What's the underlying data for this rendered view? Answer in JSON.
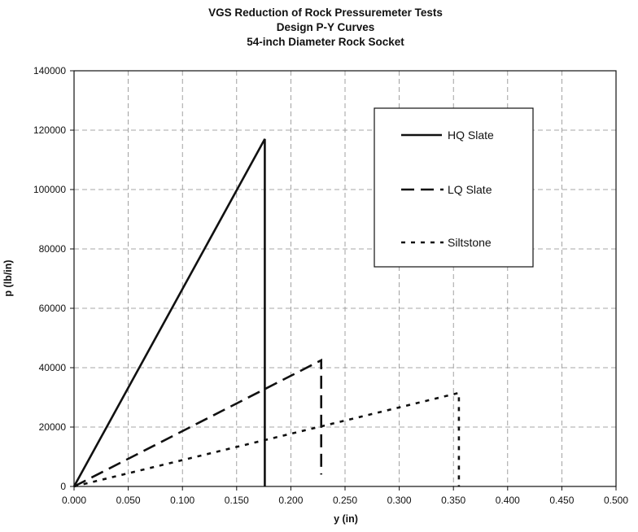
{
  "chart_data": {
    "type": "line",
    "title": [
      "VGS Reduction of Rock Pressuremeter Tests",
      "Design P-Y Curves",
      "54-inch Diameter Rock Socket"
    ],
    "xlabel": "y (in)",
    "ylabel": "p (lb/in)",
    "xlim": [
      0,
      0.5
    ],
    "ylim": [
      0,
      140000
    ],
    "x_ticks": [
      "0.000",
      "0.050",
      "0.100",
      "0.150",
      "0.200",
      "0.250",
      "0.300",
      "0.350",
      "0.400",
      "0.450",
      "0.500"
    ],
    "y_ticks": [
      "0",
      "20000",
      "40000",
      "60000",
      "80000",
      "100000",
      "120000",
      "140000"
    ],
    "grid": true,
    "legend_position": "top-right",
    "series": [
      {
        "name": "HQ Slate",
        "style": "solid",
        "color": "#111111",
        "x": [
          0,
          0.176,
          0.176
        ],
        "y": [
          0,
          117000,
          0
        ]
      },
      {
        "name": "LQ Slate",
        "style": "dashed",
        "color": "#111111",
        "x": [
          0,
          0.228,
          0.228
        ],
        "y": [
          0,
          42500,
          4000
        ]
      },
      {
        "name": "Siltstone",
        "style": "dotted",
        "color": "#111111",
        "x": [
          0,
          0.355,
          0.355
        ],
        "y": [
          0,
          31500,
          0
        ]
      }
    ]
  }
}
